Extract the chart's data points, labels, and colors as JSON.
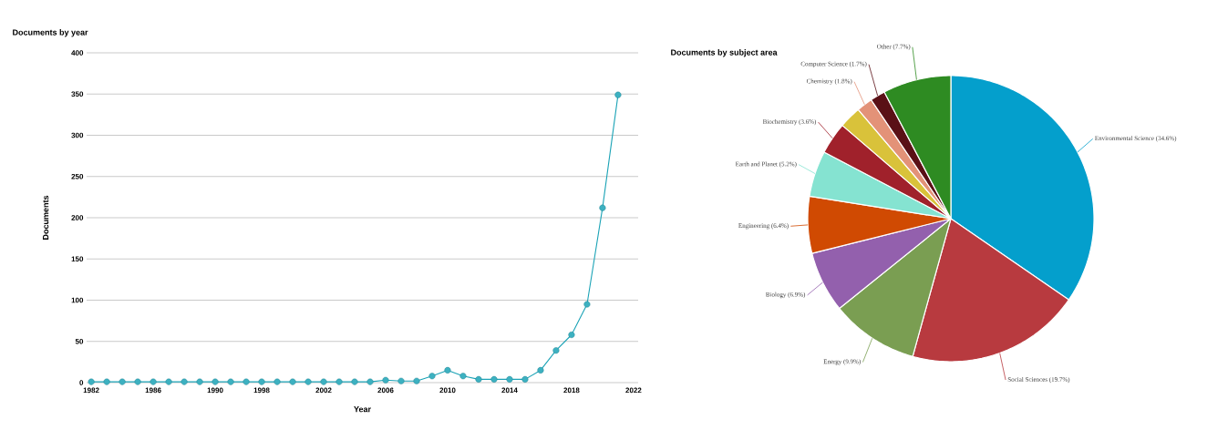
{
  "chart_data": [
    {
      "type": "line",
      "title": "Documents by year",
      "xlabel": "Year",
      "ylabel": "Documents",
      "categories": [
        "1982",
        null,
        null,
        null,
        "1986",
        null,
        null,
        null,
        "1990",
        null,
        null,
        "1998",
        null,
        null,
        null,
        "2002",
        null,
        null,
        null,
        "2006",
        null,
        null,
        null,
        "2010",
        null,
        null,
        null,
        "2014",
        null,
        null,
        null,
        "2018",
        null,
        null,
        null,
        "2022"
      ],
      "values": [
        1,
        1,
        1,
        1,
        1,
        1,
        1,
        1,
        1,
        1,
        1,
        1,
        1,
        1,
        1,
        1,
        1,
        1,
        1,
        3,
        2,
        2,
        8,
        15,
        8,
        4,
        4,
        4,
        4,
        15,
        39,
        58,
        95,
        212,
        349,
        null
      ],
      "color": "#1ba3b6",
      "marker": "circle",
      "ylim": [
        0,
        400
      ],
      "yticks": [
        0,
        50,
        100,
        150,
        200,
        250,
        300,
        350,
        400
      ],
      "grid": "y"
    },
    {
      "type": "pie",
      "title": "Documents by subject area",
      "categories": [
        "Environmental Science (34.6%)",
        "Social Sciences (19.7%)",
        "Energy (9.9%)",
        "Biology (6.9%)",
        "Engineering (6.4%)",
        "Earth and Planet (5.2%)",
        "Biochemistry (3.6%)",
        null,
        "Chemistry (1.8%)",
        "Computer Science (1.7%)",
        "Other (7.7%)"
      ],
      "values": [
        34.6,
        19.7,
        9.9,
        6.9,
        6.4,
        5.2,
        3.6,
        2.5,
        1.8,
        1.7,
        7.7
      ],
      "colors": [
        "#049fcc",
        "#b83a3f",
        "#7a9e52",
        "#9360ad",
        "#d04a02",
        "#85e3d1",
        "#a0212b",
        "#d9c23a",
        "#e39278",
        "#5a1016",
        "#2e8b22"
      ]
    }
  ]
}
